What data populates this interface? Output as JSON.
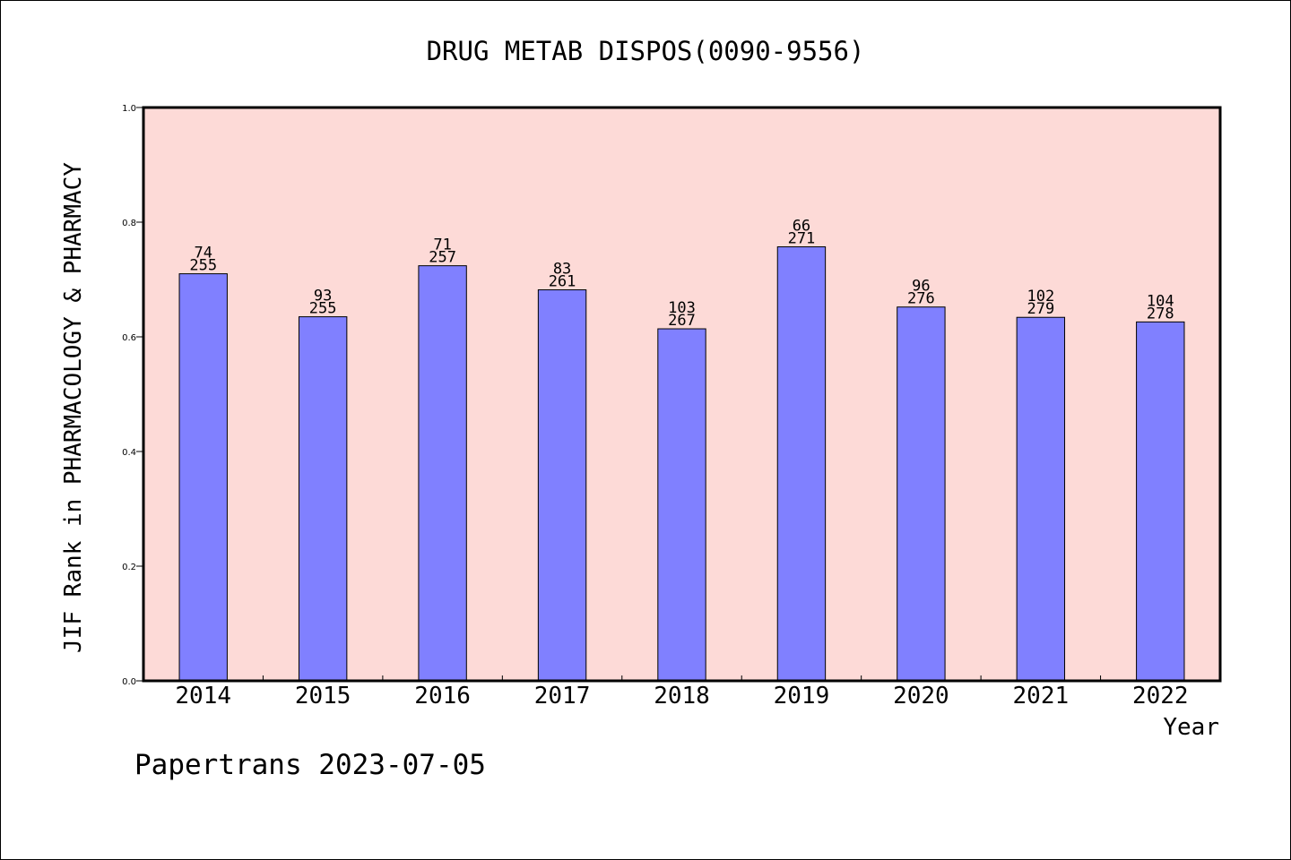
{
  "chart_data": {
    "type": "bar",
    "title": "DRUG METAB DISPOS(0090-9556)",
    "xlabel": "Year",
    "ylabel": "JIF Rank in PHARMACOLOGY & PHARMACY",
    "ylim": [
      0,
      1.0
    ],
    "yticks": [
      "0.0",
      "0.2",
      "0.4",
      "0.6",
      "0.8",
      "1.0"
    ],
    "categories": [
      "2014",
      "2015",
      "2016",
      "2017",
      "2018",
      "2019",
      "2020",
      "2021",
      "2022"
    ],
    "values": [
      0.71,
      0.635,
      0.724,
      0.682,
      0.614,
      0.757,
      0.652,
      0.634,
      0.626
    ],
    "rank": [
      "74",
      "93",
      "71",
      "83",
      "103",
      "66",
      "96",
      "102",
      "104"
    ],
    "total": [
      "255",
      "255",
      "257",
      "261",
      "267",
      "271",
      "276",
      "279",
      "278"
    ],
    "grid": false,
    "colors": {
      "plot_background": "#FDDAD7",
      "bar_fill": "#8080FF",
      "bar_stroke": "#000000"
    }
  },
  "footer": "Papertrans 2023-07-05"
}
